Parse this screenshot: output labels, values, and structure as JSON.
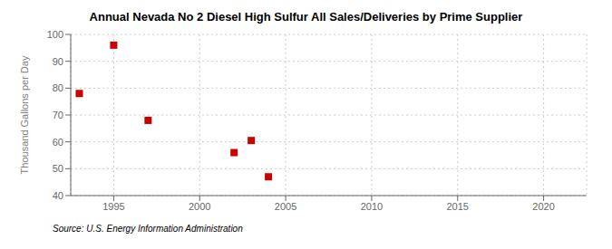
{
  "chart_data": {
    "type": "scatter",
    "title": "Annual Nevada No 2 Diesel High Sulfur All Sales/Deliveries by Prime Supplier",
    "ylabel": "Thousand Gallons per Day",
    "annotation": "Source: U.S. Energy Information Administration",
    "x": [
      1993,
      1995,
      1997,
      2002,
      2003,
      2004
    ],
    "values": [
      78,
      96,
      68,
      56,
      60.5,
      47
    ],
    "color": "#cc0000",
    "marker": "square",
    "xlim": [
      1992.5,
      2022.5
    ],
    "ylim": [
      40,
      100
    ],
    "xticks": [
      1995,
      2000,
      2005,
      2010,
      2015,
      2020
    ],
    "yticks": [
      40,
      50,
      60,
      70,
      80,
      90,
      100
    ],
    "grid": true
  }
}
